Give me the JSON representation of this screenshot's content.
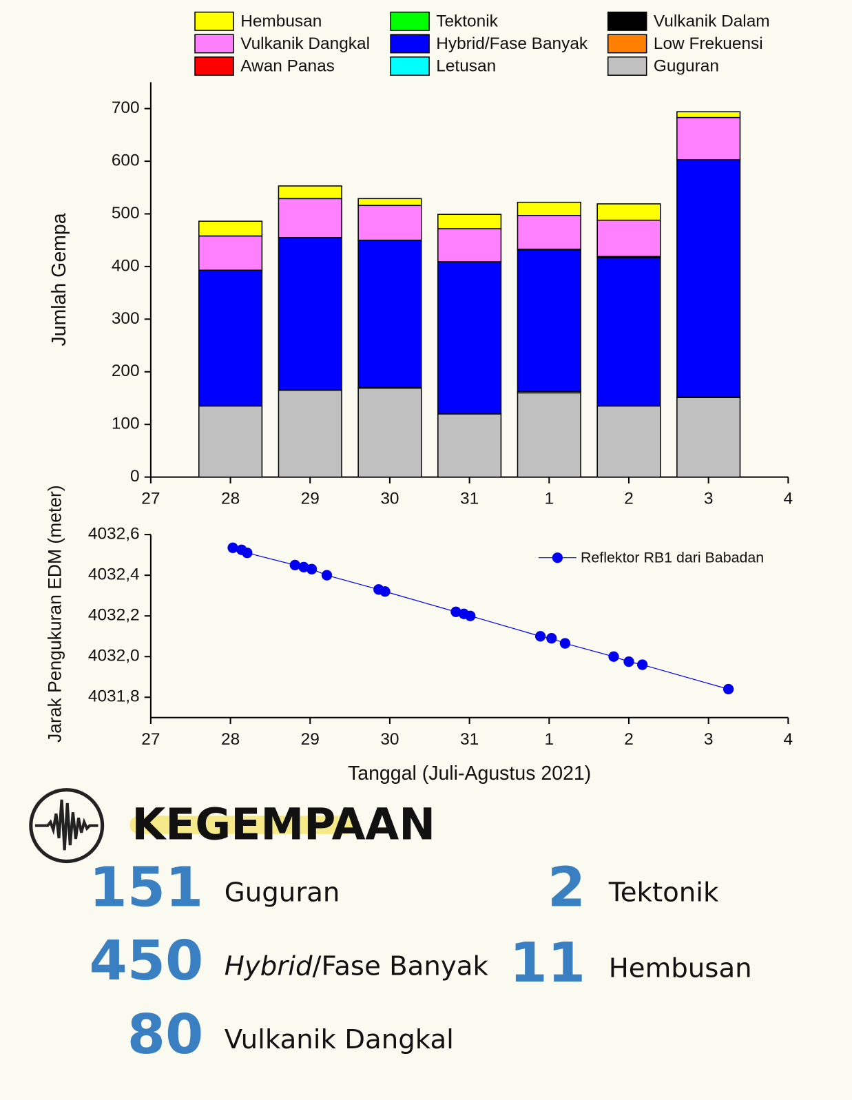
{
  "chart_data": [
    {
      "type": "stacked-bar",
      "ylabel": "Jumlah Gempa",
      "x": [
        28,
        29,
        30,
        31,
        32,
        33,
        34
      ],
      "xlim": [
        27,
        35
      ],
      "xticks": [
        27,
        28,
        29,
        30,
        31,
        {
          "value": 32,
          "label": "1"
        },
        {
          "value": 33,
          "label": "2"
        },
        {
          "value": 34,
          "label": "3"
        },
        {
          "value": 35,
          "label": "4"
        }
      ],
      "ylim": [
        0,
        750
      ],
      "yticks": [
        0,
        100,
        200,
        300,
        400,
        500,
        600,
        700
      ],
      "series": [
        {
          "name": "Guguran",
          "color": "#c0c0c0",
          "values": [
            135,
            165,
            169,
            120,
            160,
            135,
            151
          ]
        },
        {
          "name": "Tektonik",
          "color": "#00ff00",
          "values": [
            0,
            0,
            2,
            0,
            3,
            0,
            2
          ]
        },
        {
          "name": "Hybrid/Fase Banyak",
          "color": "#0000ff",
          "values": [
            258,
            290,
            279,
            289,
            269,
            282,
            450
          ]
        },
        {
          "name": "Vulkanik Dalam",
          "color": "#000000",
          "values": [
            0,
            0,
            0,
            0,
            1,
            2,
            0
          ]
        },
        {
          "name": "Low Frekuensi",
          "color": "#ff8000",
          "values": [
            0,
            0,
            0,
            0,
            0,
            0,
            0
          ]
        },
        {
          "name": "Awan Panas",
          "color": "#ff0000",
          "values": [
            0,
            0,
            0,
            0,
            0,
            0,
            0
          ]
        },
        {
          "name": "Letusan",
          "color": "#00ffff",
          "values": [
            0,
            0,
            0,
            0,
            0,
            0,
            0
          ]
        },
        {
          "name": "Vulkanik Dangkal",
          "color": "#ff80ff",
          "values": [
            65,
            74,
            66,
            63,
            64,
            69,
            80
          ]
        },
        {
          "name": "Hembusan",
          "color": "#ffff00",
          "values": [
            28,
            24,
            13,
            27,
            25,
            31,
            11
          ]
        }
      ]
    },
    {
      "type": "line",
      "xlabel": "Tanggal (Juli-Agustus 2021)",
      "ylabel": "Jarak Pengukuran EDM (meter)",
      "xlim": [
        27,
        35
      ],
      "xticks": [
        27,
        28,
        29,
        30,
        31,
        {
          "value": 32,
          "label": "1"
        },
        {
          "value": 33,
          "label": "2"
        },
        {
          "value": 34,
          "label": "3"
        },
        {
          "value": 35,
          "label": "4"
        }
      ],
      "ylim": [
        4031.7,
        4032.6
      ],
      "yticks": [
        {
          "value": 4031.8,
          "label": "4031,8"
        },
        {
          "value": 4032.0,
          "label": "4032,0"
        },
        {
          "value": 4032.2,
          "label": "4032,2"
        },
        {
          "value": 4032.4,
          "label": "4032,4"
        },
        {
          "value": 4032.6,
          "label": "4032,6"
        }
      ],
      "series": [
        {
          "name": "Reflektor RB1 dari Babadan",
          "color": "#0000ee",
          "x": [
            28.03,
            28.14,
            28.21,
            28.81,
            28.92,
            29.02,
            29.21,
            29.86,
            29.94,
            30.83,
            30.93,
            31.01,
            31.89,
            32.03,
            32.2,
            32.81,
            33.0,
            33.17,
            34.25
          ],
          "values": [
            4032.535,
            4032.525,
            4032.51,
            4032.45,
            4032.44,
            4032.43,
            4032.4,
            4032.33,
            4032.32,
            4032.22,
            4032.21,
            4032.2,
            4032.1,
            4032.09,
            4032.065,
            4032.0,
            4031.975,
            4031.96,
            4031.84
          ]
        }
      ]
    }
  ],
  "info": {
    "title": "KEGEMPAAN",
    "items": [
      {
        "value": 151,
        "label": "Guguran"
      },
      {
        "value": 450,
        "label_em": "Hybrid",
        "label": "/Fase Banyak"
      },
      {
        "value": 80,
        "label": "Vulkanik Dangkal"
      },
      {
        "value": 2,
        "label": "Tektonik"
      },
      {
        "value": 11,
        "label": "Hembusan"
      }
    ]
  }
}
